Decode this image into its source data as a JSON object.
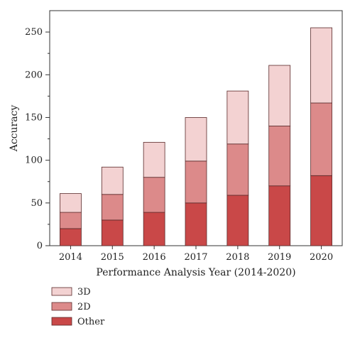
{
  "chart_data": {
    "type": "bar",
    "stacked": true,
    "title": "",
    "xlabel": "Performance Analysis Year (2014-2020)",
    "ylabel": "Accuracy",
    "categories": [
      "2014",
      "2015",
      "2016",
      "2017",
      "2018",
      "2019",
      "2020"
    ],
    "series": [
      {
        "name": "Other",
        "color": "#c94848",
        "values": [
          20,
          30,
          39,
          50,
          59,
          70,
          82
        ]
      },
      {
        "name": "2D",
        "color": "#dc8a8a",
        "values": [
          19,
          30,
          41,
          49,
          60,
          70,
          85
        ]
      },
      {
        "name": "3D",
        "color": "#f3d2d2",
        "values": [
          22,
          32,
          41,
          51,
          62,
          71,
          88
        ]
      }
    ],
    "ylim": [
      0,
      275
    ],
    "yticks": [
      0,
      50,
      100,
      150,
      200,
      250
    ],
    "grid": false,
    "legend_position": "bottom-left",
    "legend_order": [
      "3D",
      "2D",
      "Other"
    ]
  }
}
